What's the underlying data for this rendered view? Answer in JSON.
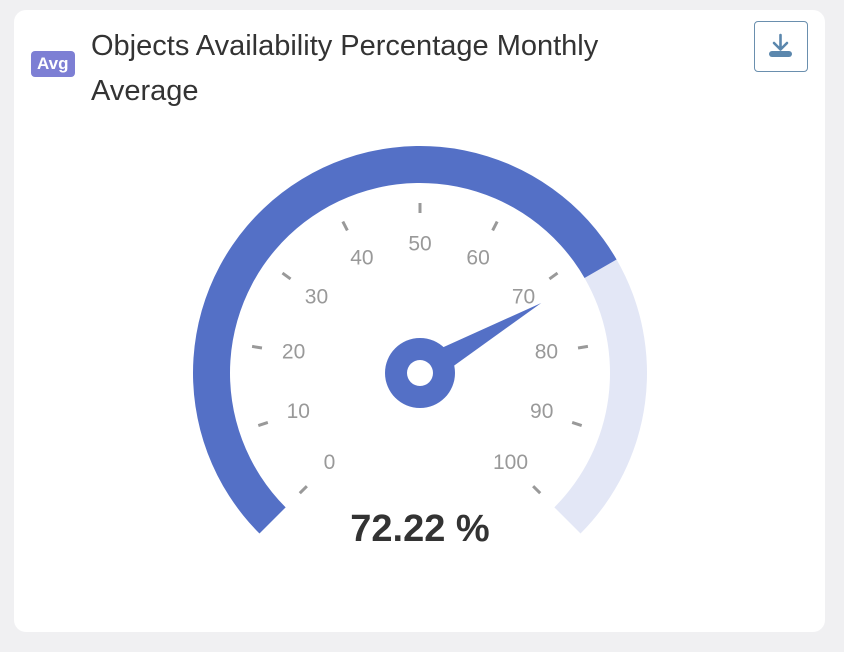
{
  "chart_data": {
    "type": "gauge",
    "badge": "Avg",
    "title": "Objects Availability Percentage Monthly Average",
    "values": [
      72.22
    ],
    "value_labels": [
      "72.22 %"
    ],
    "color": "#5470c6",
    "track_color": "#e3e7f6",
    "ylim": [
      0,
      100
    ],
    "yticks": [
      0,
      10,
      20,
      30,
      40,
      50,
      60,
      70,
      80,
      90,
      100
    ]
  }
}
